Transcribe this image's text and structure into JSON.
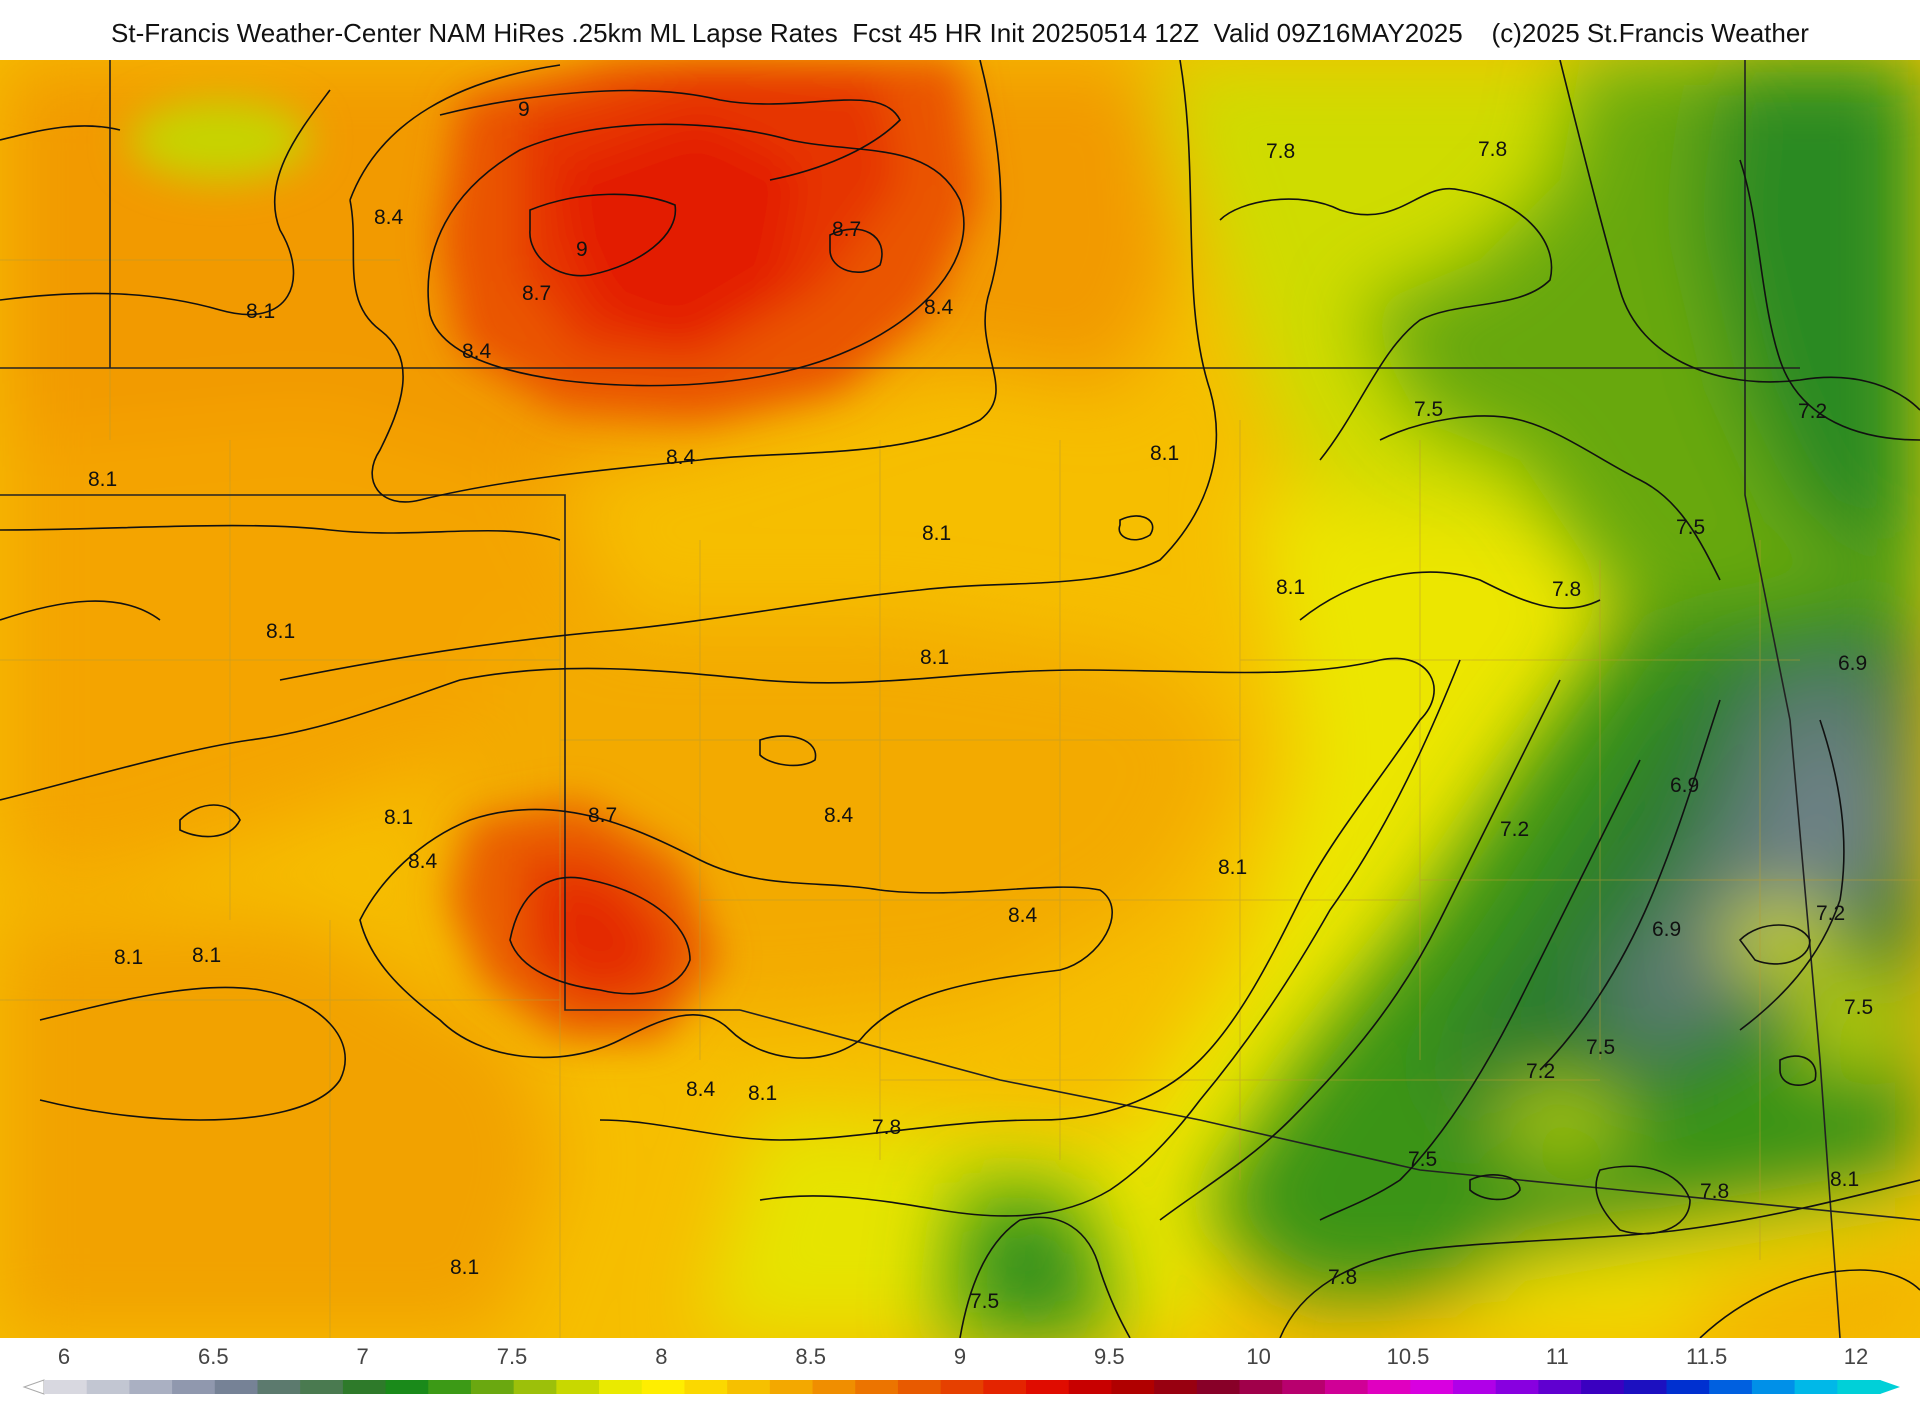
{
  "header": {
    "title": "St-Francis Weather-Center NAM HiRes .25km ML Lapse Rates  Fcst 45 HR Init 20250514 12Z  Valid 09Z16MAY2025    (c)2025 St.Francis Weather"
  },
  "colorbar": {
    "min": 6,
    "max": 12,
    "tick_labels": [
      "6",
      "6.5",
      "7",
      "7.5",
      "8",
      "8.5",
      "9",
      "9.5",
      "10",
      "10.5",
      "11",
      "11.5",
      "12"
    ],
    "tick_values": [
      6,
      6.5,
      7,
      7.5,
      8,
      8.5,
      9,
      9.5,
      10,
      10.5,
      11,
      11.5,
      12
    ],
    "colors": [
      "#d8d8e0",
      "#c2c6d2",
      "#aab0c2",
      "#9098ae",
      "#768296",
      "#5c7a6e",
      "#4a7a50",
      "#2e7a2a",
      "#1a8a1a",
      "#3c9a16",
      "#6aa810",
      "#9cc00a",
      "#c8d800",
      "#eaea00",
      "#ffee00",
      "#fbd800",
      "#f6c000",
      "#f3a800",
      "#f08e00",
      "#ec7400",
      "#e85a00",
      "#e64000",
      "#e42400",
      "#e00c00",
      "#c80000",
      "#b00000",
      "#980010",
      "#880028",
      "#a0004a",
      "#b8006e",
      "#d00096",
      "#e000c0",
      "#d800e0",
      "#b000e8",
      "#8800e0",
      "#6000d0",
      "#3a00c0",
      "#1c10c0",
      "#0030d0",
      "#0060e0",
      "#0090e8",
      "#00b8e8",
      "#00d0d8"
    ]
  },
  "map": {
    "contour_labels": [
      {
        "text": "9"
      },
      {
        "text": "9"
      },
      {
        "text": "8.4"
      },
      {
        "text": "8.7"
      },
      {
        "text": "8.7"
      },
      {
        "text": "8.1"
      },
      {
        "text": "8.4"
      },
      {
        "text": "8.4"
      },
      {
        "text": "7.8"
      },
      {
        "text": "7.8"
      },
      {
        "text": "7.5"
      },
      {
        "text": "7.2"
      },
      {
        "text": "8.1"
      },
      {
        "text": "8.1"
      },
      {
        "text": "8.4"
      },
      {
        "text": "8.1"
      },
      {
        "text": "7.5"
      },
      {
        "text": "8.1"
      },
      {
        "text": "8.1"
      },
      {
        "text": "7.8"
      },
      {
        "text": "8.1"
      },
      {
        "text": "6.9"
      },
      {
        "text": "8.7"
      },
      {
        "text": "8.4"
      },
      {
        "text": "8.1"
      },
      {
        "text": "8.4"
      },
      {
        "text": "6.9"
      },
      {
        "text": "7.2"
      },
      {
        "text": "8.1"
      },
      {
        "text": "8.4"
      },
      {
        "text": "7.2"
      },
      {
        "text": "6.9"
      },
      {
        "text": "8.1"
      },
      {
        "text": "8.1"
      },
      {
        "text": "7.5"
      },
      {
        "text": "7.5"
      },
      {
        "text": "7.2"
      },
      {
        "text": "8.4"
      },
      {
        "text": "8.1"
      },
      {
        "text": "7.8"
      },
      {
        "text": "7.5"
      },
      {
        "text": "7.8"
      },
      {
        "text": "8.1"
      },
      {
        "text": "8.1"
      },
      {
        "text": "7.8"
      },
      {
        "text": "7.5"
      }
    ]
  }
}
